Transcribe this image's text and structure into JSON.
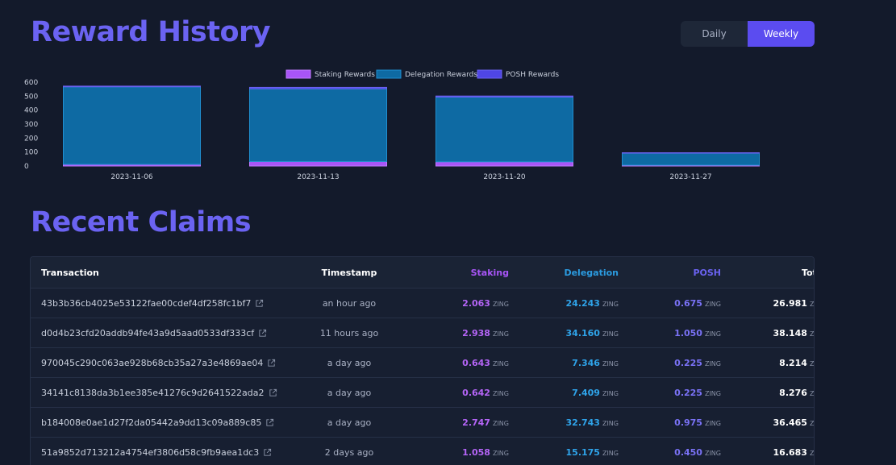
{
  "header": {
    "title": "Reward History"
  },
  "toggle": {
    "daily": "Daily",
    "weekly": "Weekly",
    "active": "weekly"
  },
  "claims": {
    "title": "Recent Claims"
  },
  "colors": {
    "staking": "#a855f7",
    "delegation": "#0e6aa3",
    "posh": "#4f46e5"
  },
  "chart_data": {
    "type": "bar",
    "stacked": true,
    "categories": [
      "2023-11-06",
      "2023-11-13",
      "2023-11-20",
      "2023-11-27"
    ],
    "series": [
      {
        "name": "Staking Rewards",
        "values": [
          12,
          32,
          30,
          6
        ]
      },
      {
        "name": "Delegation Rewards",
        "values": [
          555,
          521,
          464,
          87
        ]
      },
      {
        "name": "POSH Rewards",
        "values": [
          5,
          10,
          7,
          2
        ]
      }
    ],
    "ylim": [
      0,
      600
    ],
    "yticks": [
      0,
      100,
      200,
      300,
      400,
      500,
      600
    ],
    "legend": "top-center",
    "grid": false
  },
  "table": {
    "headers": {
      "transaction": "Transaction",
      "timestamp": "Timestamp",
      "staking": "Staking",
      "delegation": "Delegation",
      "posh": "POSH",
      "total": "Total"
    },
    "unit": "ZING",
    "rows": [
      {
        "tx": "43b3b36cb4025e53122fae00cdef4df258fc1bf7",
        "time": "an hour ago",
        "staking": "2.063",
        "delegation": "24.243",
        "posh": "0.675",
        "total": "26.981"
      },
      {
        "tx": "d0d4b23cfd20addb94fe43a9d5aad0533df333cf",
        "time": "11 hours ago",
        "staking": "2.938",
        "delegation": "34.160",
        "posh": "1.050",
        "total": "38.148"
      },
      {
        "tx": "970045c290c063ae928b68cb35a27a3e4869ae04",
        "time": "a day ago",
        "staking": "0.643",
        "delegation": "7.346",
        "posh": "0.225",
        "total": "8.214"
      },
      {
        "tx": "34141c8138da3b1ee385e41276c9d2641522ada2",
        "time": "a day ago",
        "staking": "0.642",
        "delegation": "7.409",
        "posh": "0.225",
        "total": "8.276"
      },
      {
        "tx": "b184008e0ae1d27f2da05442a9dd13c09a889c85",
        "time": "a day ago",
        "staking": "2.747",
        "delegation": "32.743",
        "posh": "0.975",
        "total": "36.465"
      },
      {
        "tx": "51a9852d713212a4754ef3806d58c9fb9aea1dc3",
        "time": "2 days ago",
        "staking": "1.058",
        "delegation": "15.175",
        "posh": "0.450",
        "total": "16.683"
      }
    ]
  }
}
